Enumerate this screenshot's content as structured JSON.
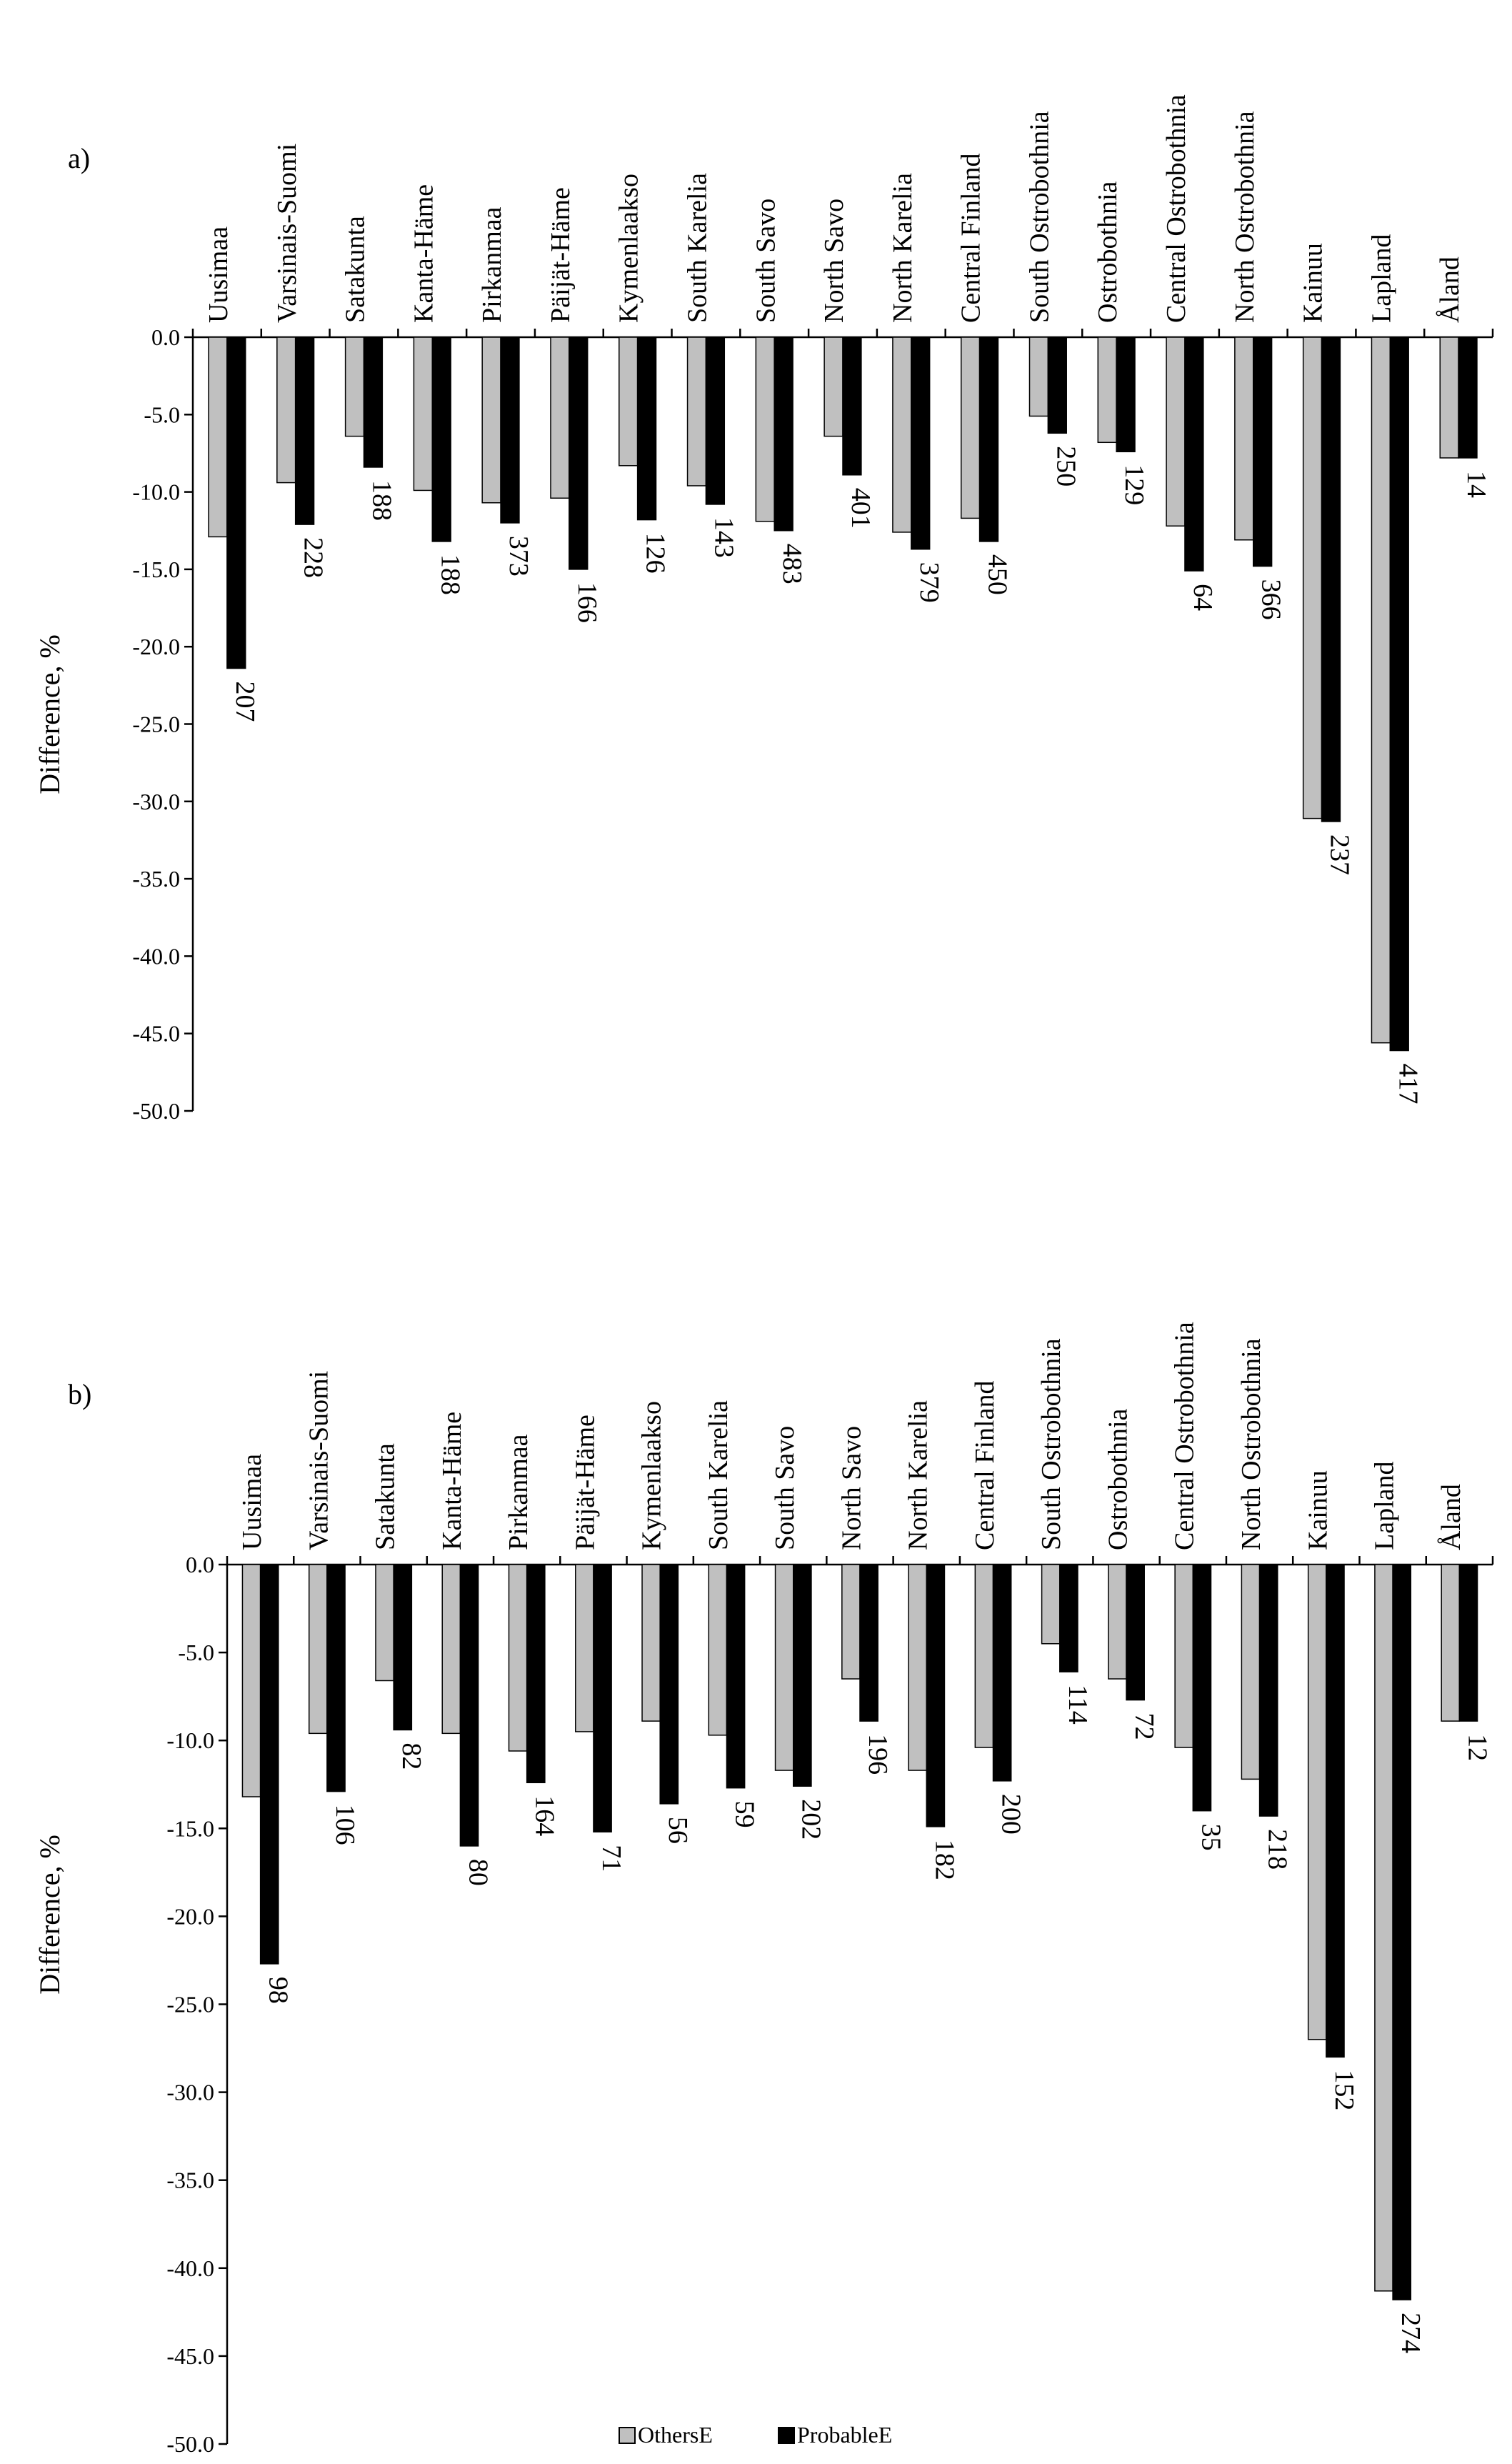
{
  "chart_data": [
    {
      "type": "bar",
      "panel_label": "a)",
      "ylabel": "Difference,  %",
      "ylim": [
        -50,
        0
      ],
      "yticks": [
        "0.0",
        "-5.0",
        "-10.0",
        "-15.0",
        "-20.0",
        "-25.0",
        "-30.0",
        "-35.0",
        "-40.0",
        "-45.0",
        "-50.0"
      ],
      "categories": [
        "Uusimaa",
        "Varsinais-Suomi",
        "Satakunta",
        "Kanta-Häme",
        "Pirkanmaa",
        "Päijät-Häme",
        "Kymenlaakso",
        "South Karelia",
        "South Savo",
        "North Savo",
        "North Karelia",
        "Central Finland",
        "South Ostrobothnia",
        "Ostrobothnia",
        "Central Ostrobothnia",
        "North Ostrobothnia",
        "Kainuu",
        "Lapland",
        "Åland"
      ],
      "series": [
        {
          "name": "OthersE",
          "color": "#c0c0c0",
          "values": [
            -12.9,
            -9.4,
            -6.4,
            -9.9,
            -10.7,
            -10.4,
            -8.3,
            -9.6,
            -11.9,
            -6.4,
            -12.6,
            -11.7,
            -5.1,
            -6.8,
            -12.2,
            -13.1,
            -31.1,
            -45.6,
            -7.8
          ]
        },
        {
          "name": "ProbableE",
          "color": "#000000",
          "values": [
            -21.4,
            -12.1,
            -8.4,
            -13.2,
            -12.0,
            -15.0,
            -11.8,
            -10.8,
            -12.5,
            -8.9,
            -13.7,
            -13.2,
            -6.2,
            -7.4,
            -15.1,
            -14.8,
            -31.3,
            -46.1,
            -7.8
          ]
        }
      ],
      "counts": [
        "207",
        "228",
        "188",
        "188",
        "373",
        "166",
        "126",
        "143",
        "483",
        "401",
        "379",
        "450",
        "250",
        "129",
        "64",
        "366",
        "237",
        "417",
        "14"
      ]
    },
    {
      "type": "bar",
      "panel_label": "b)",
      "ylabel": "Difference, %",
      "ylim": [
        -50,
        0
      ],
      "yticks": [
        "0.0",
        "-5.0",
        "-10.0",
        "-15.0",
        "-20.0",
        "-25.0",
        "-30.0",
        "-35.0",
        "-40.0",
        "-45.0",
        "-50.0"
      ],
      "categories": [
        "Uusimaa",
        "Varsinais-Suomi",
        "Satakunta",
        "Kanta-Häme",
        "Pirkanmaa",
        "Päijät-Häme",
        "Kymenlaakso",
        "South Karelia",
        "South Savo",
        "North Savo",
        "North Karelia",
        "Central Finland",
        "South Ostrobothnia",
        "Ostrobothnia",
        "Central Ostrobothnia",
        "North Ostrobothnia",
        "Kainuu",
        "Lapland",
        "Åland"
      ],
      "series": [
        {
          "name": "OthersE",
          "color": "#c0c0c0",
          "values": [
            -13.2,
            -9.6,
            -6.6,
            -9.6,
            -10.6,
            -9.5,
            -8.9,
            -9.7,
            -11.7,
            -6.5,
            -11.7,
            -10.4,
            -4.5,
            -6.5,
            -10.4,
            -12.2,
            -27.0,
            -41.3,
            -8.9
          ]
        },
        {
          "name": "ProbableE",
          "color": "#000000",
          "values": [
            -22.7,
            -12.9,
            -9.4,
            -16.0,
            -12.4,
            -15.2,
            -13.6,
            -12.7,
            -12.6,
            -8.9,
            -14.9,
            -12.3,
            -6.1,
            -7.7,
            -14.0,
            -14.3,
            -28.0,
            -41.8,
            -8.9
          ]
        }
      ],
      "counts": [
        "98",
        "106",
        "82",
        "80",
        "164",
        "71",
        "56",
        "59",
        "202",
        "196",
        "182",
        "200",
        "114",
        "72",
        "35",
        "218",
        "152",
        "274",
        "12"
      ],
      "legend": [
        "OthersE",
        "ProbableE"
      ]
    }
  ]
}
